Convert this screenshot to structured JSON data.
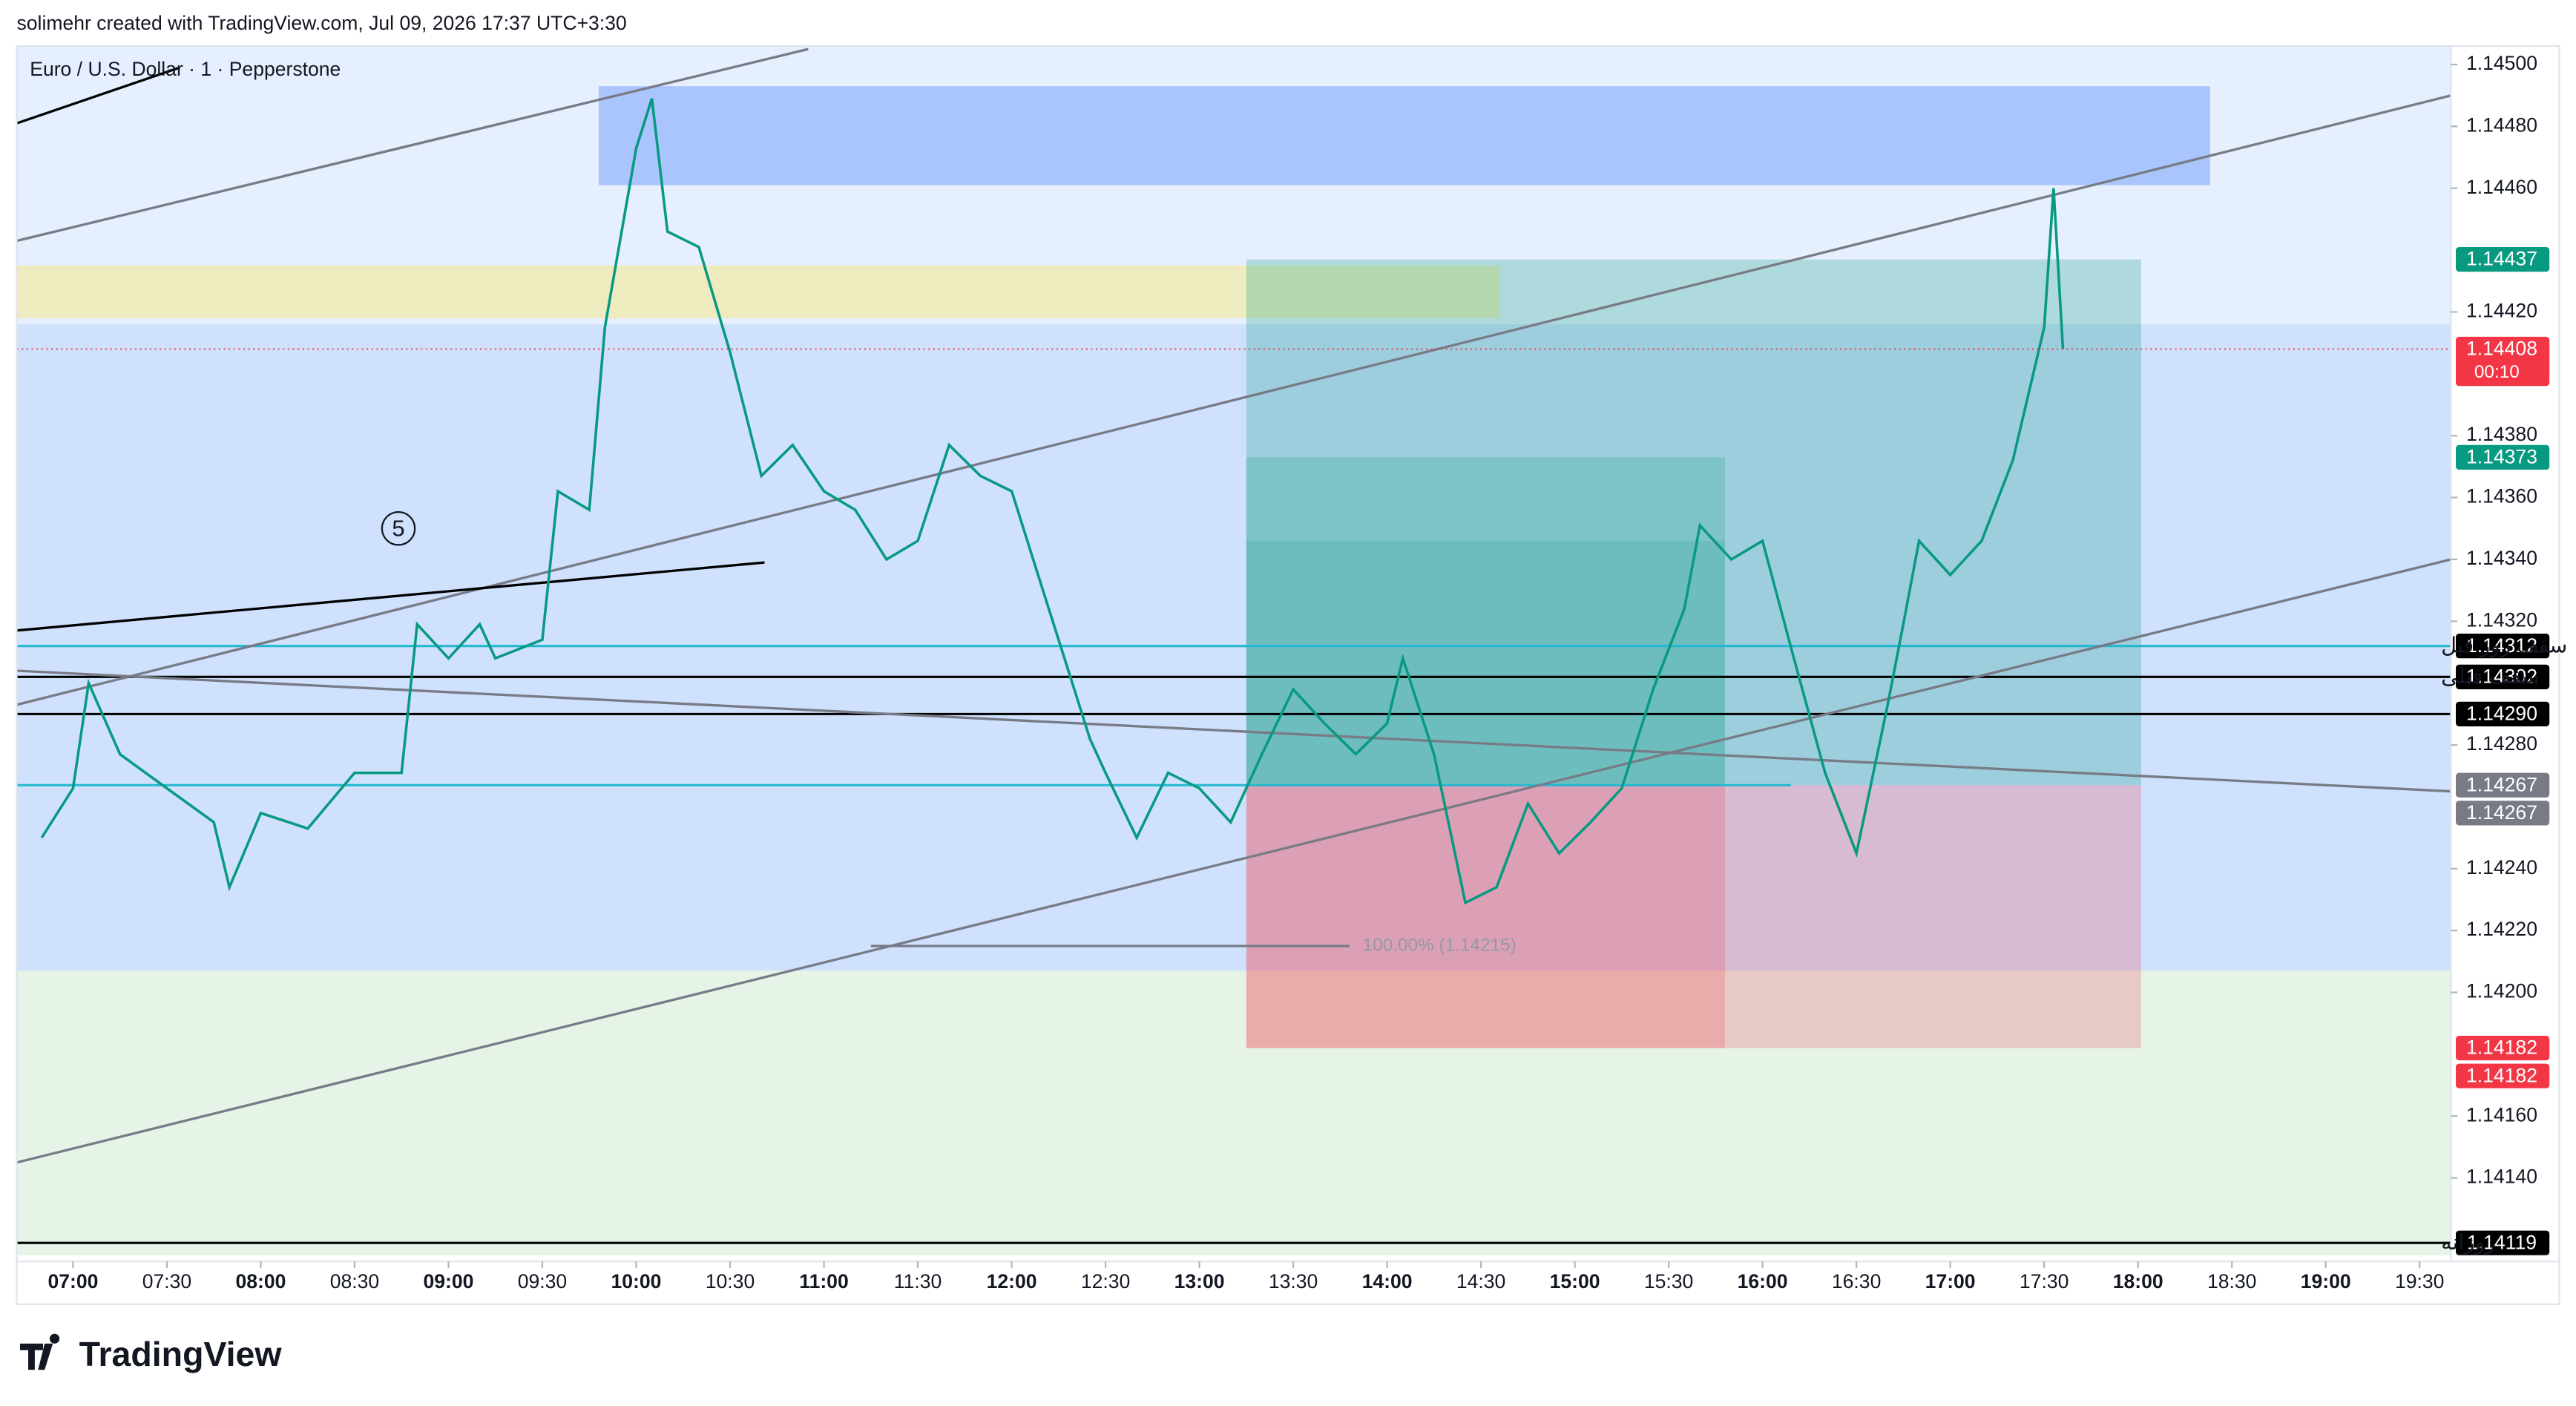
{
  "chart_data": {
    "type": "line",
    "caption": "solimehr created with TradingView.com, Jul 09, 2026 17:37 UTC+3:30",
    "title": "Euro / U.S. Dollar · 1 · Pepperstone",
    "brand": "TradingView",
    "color": "#089981",
    "xlim": [
      "06:42",
      "19:40"
    ],
    "xticks": [
      "07:00",
      "07:30",
      "08:00",
      "08:30",
      "09:00",
      "09:30",
      "10:00",
      "10:30",
      "11:00",
      "11:30",
      "12:00",
      "12:30",
      "13:00",
      "13:30",
      "14:00",
      "14:30",
      "15:00",
      "15:30",
      "16:00",
      "16:30",
      "17:00",
      "17:30",
      "18:00",
      "18:30",
      "19:00",
      "19:30"
    ],
    "ylim": [
      1.14113,
      1.14506
    ],
    "yticks": [
      {
        "value": 1.145,
        "label": "1.14500"
      },
      {
        "value": 1.1448,
        "label": "1.14480"
      },
      {
        "value": 1.1446,
        "label": "1.14460"
      },
      {
        "value": 1.1442,
        "label": "1.14420"
      },
      {
        "value": 1.1438,
        "label": "1.14380"
      },
      {
        "value": 1.1436,
        "label": "1.14360"
      },
      {
        "value": 1.1434,
        "label": "1.14340"
      },
      {
        "value": 1.1432,
        "label": "1.14320"
      },
      {
        "value": 1.1428,
        "label": "1.14280"
      },
      {
        "value": 1.1424,
        "label": "1.14240"
      },
      {
        "value": 1.1422,
        "label": "1.14220"
      },
      {
        "value": 1.142,
        "label": "1.14200"
      },
      {
        "value": 1.1416,
        "label": "1.14160"
      },
      {
        "value": 1.1414,
        "label": "1.14140"
      }
    ],
    "x": [
      "06:50",
      "07:00",
      "07:05",
      "07:15",
      "07:30",
      "07:45",
      "07:50",
      "08:00",
      "08:15",
      "08:30",
      "08:45",
      "08:50",
      "09:00",
      "09:10",
      "09:15",
      "09:30",
      "09:35",
      "09:45",
      "09:50",
      "10:00",
      "10:05",
      "10:10",
      "10:20",
      "10:30",
      "10:40",
      "10:50",
      "11:00",
      "11:10",
      "11:20",
      "11:30",
      "11:40",
      "11:50",
      "12:00",
      "12:10",
      "12:20",
      "12:25",
      "12:30",
      "12:40",
      "12:50",
      "13:00",
      "13:10",
      "13:20",
      "13:30",
      "13:40",
      "13:50",
      "14:00",
      "14:05",
      "14:15",
      "14:25",
      "14:35",
      "14:45",
      "14:55",
      "15:05",
      "15:15",
      "15:25",
      "15:35",
      "15:40",
      "15:50",
      "16:00",
      "16:10",
      "16:20",
      "16:30",
      "16:40",
      "16:45",
      "16:50",
      "17:00",
      "17:10",
      "17:20",
      "17:30",
      "17:33",
      "17:36"
    ],
    "values": [
      1.1425,
      1.14266,
      1.143,
      1.14277,
      1.14266,
      1.14255,
      1.14234,
      1.14258,
      1.14253,
      1.14271,
      1.14271,
      1.14319,
      1.14308,
      1.14319,
      1.14308,
      1.14314,
      1.14362,
      1.14356,
      1.14415,
      1.14473,
      1.14489,
      1.14446,
      1.14441,
      1.14407,
      1.14367,
      1.14377,
      1.14362,
      1.14356,
      1.1434,
      1.14346,
      1.14377,
      1.14367,
      1.14362,
      1.1433,
      1.14298,
      1.14282,
      1.14271,
      1.1425,
      1.14271,
      1.14266,
      1.14255,
      1.14277,
      1.14298,
      1.14287,
      1.14277,
      1.14287,
      1.14308,
      1.14277,
      1.14229,
      1.14234,
      1.14261,
      1.14245,
      1.14255,
      1.14266,
      1.14298,
      1.14324,
      1.14351,
      1.1434,
      1.14346,
      1.14308,
      1.14271,
      1.14245,
      1.14293,
      1.14319,
      1.14346,
      1.14335,
      1.14346,
      1.14372,
      1.14415,
      1.1446,
      1.14408
    ],
    "zones": [
      {
        "from": "06:42",
        "to": "19:40",
        "top": 1.14506,
        "bottom": 1.14416,
        "color": "rgba(200,220,250,0.45)"
      },
      {
        "from": "06:42",
        "to": "19:40",
        "top": 1.14416,
        "bottom": 1.14207,
        "color": "rgba(160,195,250,0.5)"
      },
      {
        "from": "06:42",
        "to": "19:40",
        "top": 1.14207,
        "bottom": 1.14115,
        "color": "rgba(200,230,205,0.45)"
      },
      {
        "from": "09:48",
        "to": "18:23",
        "top": 1.14493,
        "bottom": 1.14461,
        "color": "rgba(120,160,255,0.55)"
      },
      {
        "from": "06:42",
        "to": "14:36",
        "top": 1.14435,
        "bottom": 1.14418,
        "color": "rgba(240,235,170,0.75)"
      },
      {
        "from": "13:15",
        "to": "18:01",
        "top": 1.14437,
        "bottom": 1.14267,
        "color": "rgba(8,153,129,0.25)"
      },
      {
        "from": "13:15",
        "to": "15:48",
        "top": 1.14373,
        "bottom": 1.14267,
        "color": "rgba(8,153,129,0.2)"
      },
      {
        "from": "13:15",
        "to": "15:48",
        "top": 1.14346,
        "bottom": 1.14267,
        "color": "rgba(8,153,129,0.15)"
      },
      {
        "from": "13:15",
        "to": "18:01",
        "top": 1.14267,
        "bottom": 1.14182,
        "color": "rgba(242,54,69,0.22)"
      },
      {
        "from": "13:15",
        "to": "15:48",
        "top": 1.14267,
        "bottom": 1.14182,
        "color": "rgba(242,54,69,0.2)"
      }
    ],
    "trend_lines": [
      {
        "x": [
          "06:42",
          "10:55"
        ],
        "y": [
          1.14443,
          1.14505
        ],
        "color": "#787b86"
      },
      {
        "x": [
          "06:42",
          "19:40"
        ],
        "y": [
          1.14293,
          1.1449
        ],
        "color": "#787b86"
      },
      {
        "x": [
          "06:42",
          "19:40"
        ],
        "y": [
          1.14145,
          1.1434
        ],
        "color": "#787b86"
      },
      {
        "x": [
          "06:42",
          "19:40"
        ],
        "y": [
          1.14304,
          1.14265
        ],
        "color": "#787b86"
      },
      {
        "x": [
          "06:42",
          "10:41"
        ],
        "y": [
          1.14317,
          1.14339
        ],
        "color": "#000000"
      },
      {
        "x": [
          "06:42",
          "07:34"
        ],
        "y": [
          1.14481,
          1.14499
        ],
        "color": "#000000"
      },
      {
        "x": [
          "11:15",
          "13:48"
        ],
        "y": [
          1.14215,
          1.14215
        ],
        "color": "#787b86",
        "text": "100.00% (1.14215)"
      }
    ],
    "hlines": [
      {
        "price": 1.14312,
        "from": "06:42",
        "to": "19:40",
        "color": "#22b8cf"
      },
      {
        "price": 1.14267,
        "from": "06:42",
        "to": "16:09",
        "color": "#22b8cf"
      },
      {
        "price": 1.14302,
        "from": "06:42",
        "to": "19:40",
        "color": "#000000"
      },
      {
        "price": 1.1429,
        "from": "06:42",
        "to": "19:40",
        "color": "#000000"
      },
      {
        "price": 1.14119,
        "from": "06:42",
        "to": "19:40",
        "color": "#000000"
      }
    ],
    "annotations": [
      {
        "text": "5",
        "x": "08:44",
        "y": 1.1435
      }
    ],
    "markers": [
      {
        "value": 1.14437,
        "color": "#089981"
      },
      {
        "value": 1.14408,
        "color": "#f23645",
        "sub": "00:10"
      },
      {
        "value": 1.14373,
        "color": "#089981"
      },
      {
        "value": 1.14312,
        "color": "#000000",
        "text": "سقف روز قبل"
      },
      {
        "value": 1.14302,
        "color": "#000000",
        "text": "سقف قبلی"
      },
      {
        "value": 1.1429,
        "label": "1.14290",
        "color": "#000000"
      },
      {
        "value": 1.14267,
        "color": "#787b86"
      },
      {
        "value": 1.14267,
        "color": "#787b86"
      },
      {
        "value": 1.14182,
        "color": "#f23645"
      },
      {
        "value": 1.14182,
        "color": "#f23645"
      },
      {
        "value": 1.14119,
        "color": "#000000",
        "text": "روزانه"
      }
    ]
  }
}
